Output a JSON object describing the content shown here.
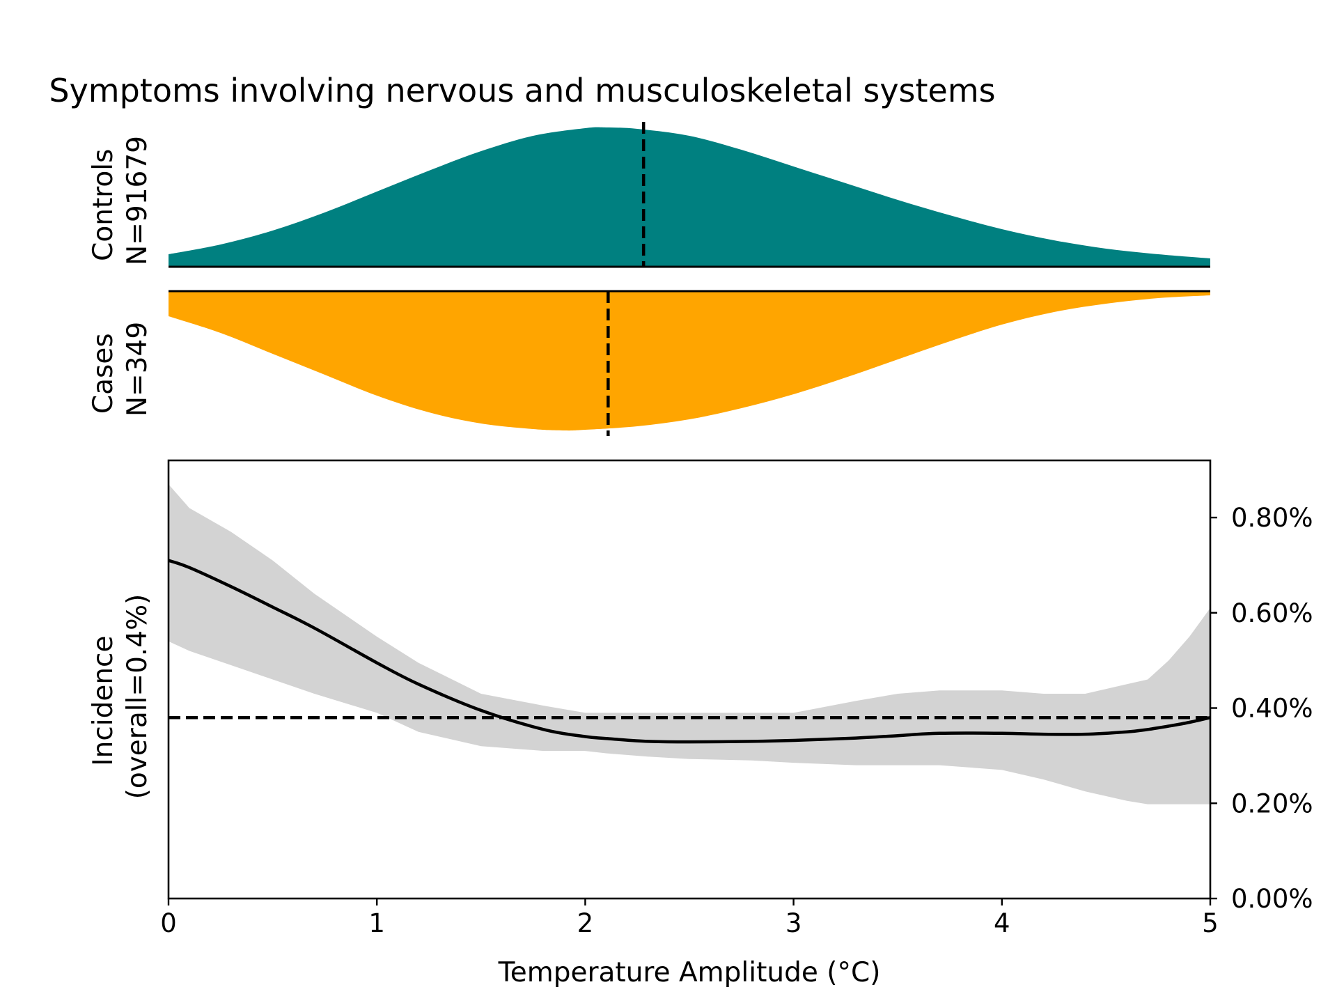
{
  "chart_data": [
    {
      "type": "area",
      "title": "Symptoms involving nervous and musculoskeletal systems",
      "panel": "controls-density",
      "ylabel_lines": [
        "Controls",
        "N=91679"
      ],
      "color": "#008080",
      "xlim": [
        0,
        5
      ],
      "ylim": [
        0,
        1
      ],
      "x": [
        0,
        0.25,
        0.5,
        0.75,
        1.0,
        1.25,
        1.5,
        1.75,
        2.0,
        2.1,
        2.25,
        2.5,
        2.75,
        3.0,
        3.25,
        3.5,
        3.75,
        4.0,
        4.25,
        4.5,
        4.75,
        5.0
      ],
      "density": [
        0.09,
        0.16,
        0.26,
        0.39,
        0.54,
        0.69,
        0.83,
        0.94,
        0.995,
        1.0,
        0.99,
        0.94,
        0.84,
        0.72,
        0.6,
        0.48,
        0.37,
        0.27,
        0.19,
        0.13,
        0.09,
        0.06
      ],
      "median": 2.28
    },
    {
      "type": "area",
      "panel": "cases-density",
      "ylabel_lines": [
        "Cases",
        "N=349"
      ],
      "color": "#FFA500",
      "xlim": [
        0,
        5
      ],
      "ylim": [
        0,
        1
      ],
      "x": [
        0,
        0.25,
        0.5,
        0.75,
        1.0,
        1.25,
        1.5,
        1.75,
        1.9,
        2.0,
        2.25,
        2.5,
        2.75,
        3.0,
        3.25,
        3.5,
        3.75,
        4.0,
        4.25,
        4.5,
        4.75,
        5.0
      ],
      "density": [
        0.18,
        0.3,
        0.45,
        0.6,
        0.75,
        0.87,
        0.95,
        0.99,
        1.0,
        0.995,
        0.97,
        0.92,
        0.84,
        0.74,
        0.62,
        0.49,
        0.36,
        0.24,
        0.15,
        0.09,
        0.05,
        0.03
      ],
      "median": 2.11
    },
    {
      "type": "line",
      "panel": "incidence",
      "xlabel": "Temperature Amplitude (°C)",
      "ylabel_lines": [
        "Incidence",
        "(overall=0.4%)"
      ],
      "xlim": [
        0,
        5
      ],
      "ylim": [
        0,
        0.0092
      ],
      "x_ticks": [
        0,
        1,
        2,
        3,
        4,
        5
      ],
      "x_tick_labels": [
        "0",
        "1",
        "2",
        "3",
        "4",
        "5"
      ],
      "y_ticks": [
        0,
        0.002,
        0.004,
        0.006,
        0.008
      ],
      "y_tick_labels": [
        "0.00%",
        "0.20%",
        "0.40%",
        "0.60%",
        "0.80%"
      ],
      "x": [
        0,
        0.1,
        0.3,
        0.5,
        0.7,
        1.0,
        1.2,
        1.5,
        1.8,
        2.0,
        2.1,
        2.3,
        2.5,
        2.8,
        3.0,
        3.3,
        3.5,
        3.7,
        4.0,
        4.2,
        4.4,
        4.6,
        4.7,
        4.8,
        4.9,
        5.0
      ],
      "incidence": [
        0.0071,
        0.00695,
        0.00655,
        0.00612,
        0.00568,
        0.00495,
        0.0045,
        0.00395,
        0.00355,
        0.0034,
        0.00336,
        0.0033,
        0.00329,
        0.0033,
        0.00332,
        0.00337,
        0.00342,
        0.00347,
        0.00347,
        0.00345,
        0.00345,
        0.0035,
        0.00355,
        0.00362,
        0.0037,
        0.0038
      ],
      "ci_upper": [
        0.0087,
        0.0082,
        0.0077,
        0.0071,
        0.0064,
        0.0055,
        0.00495,
        0.0043,
        0.00405,
        0.0039,
        0.0039,
        0.0039,
        0.0039,
        0.0039,
        0.0039,
        0.00415,
        0.0043,
        0.00437,
        0.00437,
        0.0043,
        0.0043,
        0.0045,
        0.0046,
        0.005,
        0.0055,
        0.0061
      ],
      "ci_lower": [
        0.0054,
        0.0052,
        0.0049,
        0.0046,
        0.0043,
        0.0039,
        0.0035,
        0.0032,
        0.0031,
        0.0031,
        0.00305,
        0.00298,
        0.00293,
        0.0029,
        0.00285,
        0.0028,
        0.0028,
        0.0028,
        0.0027,
        0.0025,
        0.00225,
        0.00205,
        0.00198,
        0.00198,
        0.00198,
        0.00198
      ],
      "overall": 0.0038,
      "line_color": "#000000",
      "band_color": "#d3d3d3",
      "grid": false
    }
  ]
}
